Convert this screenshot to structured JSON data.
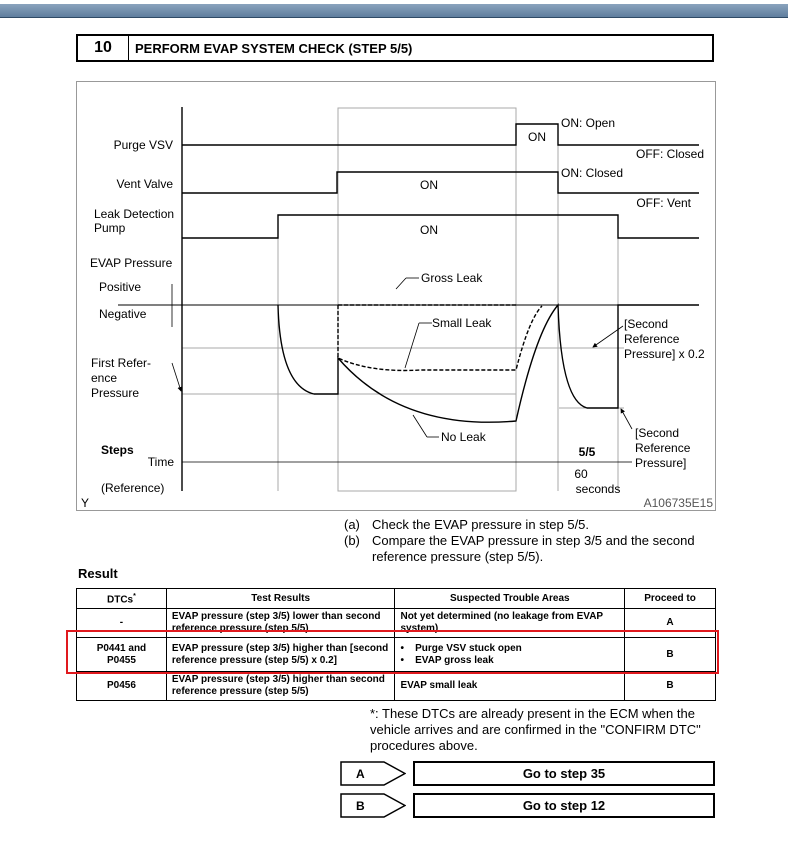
{
  "header": {
    "step_number": "10",
    "title": "PERFORM EVAP SYSTEM CHECK (STEP 5/5)"
  },
  "diagram": {
    "signals": {
      "purge_vsv": "Purge VSV",
      "vent_valve": "Vent Valve",
      "ldp_line1": "Leak Detection",
      "ldp_line2": "Pump",
      "evap": "EVAP Pressure",
      "positive": "Positive",
      "negative": "Negative",
      "first_ref_1": "First Refer-",
      "first_ref_2": "ence",
      "first_ref_3": "Pressure"
    },
    "states": {
      "on": "ON",
      "on_open": "ON: Open",
      "off_closed": "OFF: Closed",
      "on_closed": "ON: Closed",
      "off_vent": "OFF: Vent"
    },
    "curves": {
      "gross": "Gross Leak",
      "small": "Small Leak",
      "none": "No Leak"
    },
    "second_ref_x02": [
      "[Second",
      "Reference",
      "Pressure] x 0.2"
    ],
    "second_ref": [
      "[Second",
      "Reference",
      "Pressure]"
    ],
    "steps": "Steps",
    "time": "Time",
    "reference": "(Reference)",
    "step55": "5/5",
    "sixty": "60",
    "seconds": "seconds",
    "corner": "Y",
    "figure_code": "A106735E15"
  },
  "notes": [
    {
      "k": "(a)",
      "t": "Check the EVAP pressure in step 5/5."
    },
    {
      "k": "(b)",
      "t": "Compare the EVAP pressure in step 3/5 and the second reference pressure (step 5/5)."
    }
  ],
  "result": {
    "heading": "Result",
    "headers": [
      "DTCs",
      "Test Results",
      "Suspected Trouble Areas",
      "Proceed to"
    ],
    "dtc_mark": "*",
    "rows": [
      {
        "dtc": "-",
        "test": "EVAP pressure (step 3/5) lower than second reference pressure (step 5/5)",
        "areas": [
          "Not yet determined (no leakage from EVAP system)"
        ],
        "proceed": "A"
      },
      {
        "dtc": "P0441 and P0455",
        "test": "EVAP pressure (step 3/5) higher than [second reference pressure (step 5/5) x 0.2]",
        "areas": [
          "Purge VSV stuck open",
          "EVAP gross leak"
        ],
        "proceed": "B"
      },
      {
        "dtc": "P0456",
        "test": "EVAP pressure (step 3/5) higher than second reference pressure (step 5/5)",
        "areas": [
          "EVAP small leak"
        ],
        "proceed": "B"
      }
    ],
    "highlight_color": "#e0191e"
  },
  "footnote": "*: These DTCs are already present in the ECM when the vehicle arrives and are confirmed in the \"CONFIRM DTC\" procedures above.",
  "actions": [
    {
      "key": "A",
      "label": "Go to step 35"
    },
    {
      "key": "B",
      "label": "Go to step 12"
    }
  ]
}
